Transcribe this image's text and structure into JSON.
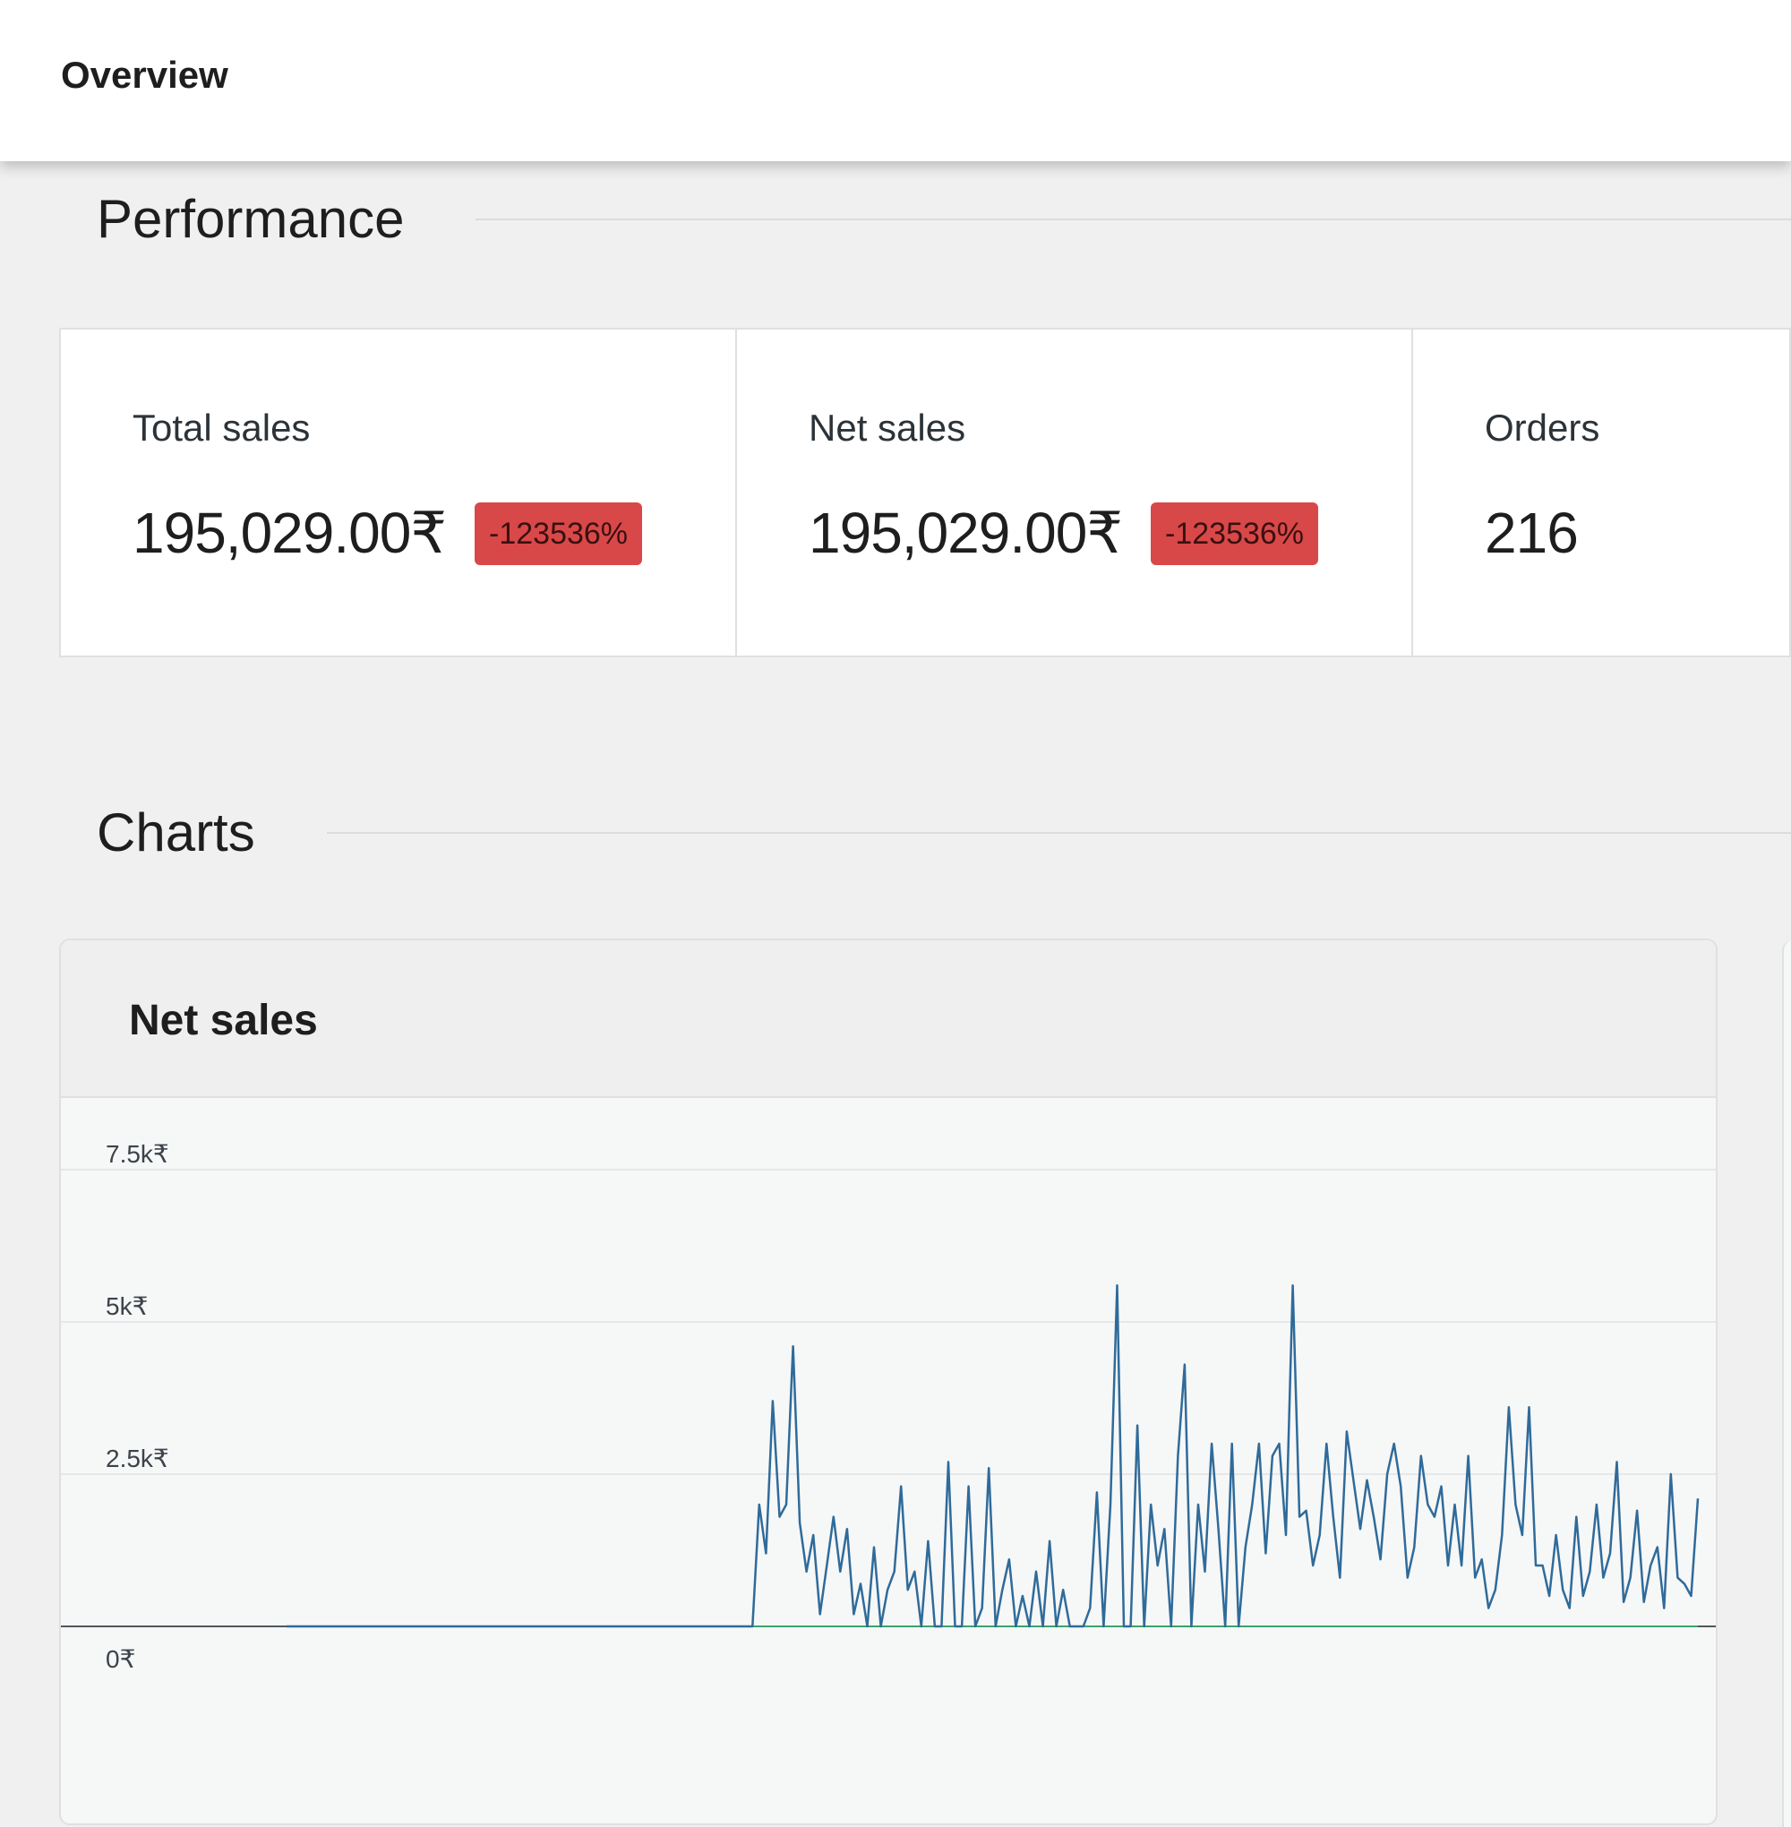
{
  "header": {
    "title": "Overview"
  },
  "sections": {
    "performance": "Performance",
    "charts": "Charts"
  },
  "cards": [
    {
      "label": "Total sales",
      "value": "195,029.00₹",
      "delta": "-123536%"
    },
    {
      "label": "Net sales",
      "value": "195,029.00₹",
      "delta": "-123536%"
    },
    {
      "label": "Orders",
      "value": "216"
    }
  ],
  "colors": {
    "negative_badge": "#d94848",
    "series_line": "#2f6b9a",
    "baseline": "#3aa36b"
  },
  "chart_data": {
    "type": "line",
    "title": "Net sales",
    "xlabel": "",
    "ylabel": "",
    "ylim": [
      -1000,
      7500
    ],
    "y_ticks": [
      "7.5k₹",
      "5k₹",
      "2.5k₹",
      "0₹"
    ],
    "grid": true,
    "legend": "none",
    "series": [
      {
        "values": [
          0,
          0,
          0,
          0,
          0,
          0,
          0,
          0,
          0,
          0,
          0,
          0,
          0,
          0,
          0,
          0,
          0,
          0,
          0,
          0,
          0,
          0,
          0,
          0,
          0,
          0,
          0,
          0,
          0,
          0,
          0,
          0,
          0,
          0,
          0,
          0,
          0,
          0,
          0,
          0,
          0,
          0,
          0,
          0,
          0,
          0,
          0,
          0,
          0,
          0,
          0,
          0,
          0,
          0,
          0,
          0,
          0,
          0,
          0,
          0,
          0,
          0,
          0,
          0,
          0,
          0,
          0,
          0,
          0,
          0,
          2000,
          1200,
          3700,
          1800,
          2000,
          4600,
          1700,
          900,
          1500,
          200,
          1000,
          1800,
          900,
          1600,
          200,
          700,
          0,
          1300,
          0,
          600,
          900,
          2300,
          600,
          900,
          0,
          1400,
          0,
          0,
          2700,
          0,
          0,
          2300,
          0,
          300,
          2600,
          0,
          600,
          1100,
          0,
          500,
          0,
          900,
          0,
          1400,
          0,
          600,
          0,
          0,
          0,
          300,
          2200,
          0,
          2000,
          5600,
          0,
          0,
          3300,
          0,
          2000,
          1000,
          1600,
          0,
          2800,
          4300,
          0,
          2000,
          900,
          3000,
          1600,
          0,
          3000,
          0,
          1300,
          2000,
          3000,
          1200,
          2800,
          3000,
          1500,
          5600,
          1800,
          1900,
          1000,
          1500,
          3000,
          1800,
          800,
          3200,
          2400,
          1600,
          2400,
          1800,
          1100,
          2500,
          3000,
          2300,
          800,
          1300,
          2800,
          2000,
          1800,
          2300,
          1000,
          2000,
          1000,
          2800,
          800,
          1100,
          300,
          600,
          1500,
          3600,
          2000,
          1500,
          3600,
          1000,
          1000,
          500,
          1500,
          600,
          300,
          1800,
          500,
          900,
          2000,
          800,
          1200,
          2700,
          400,
          800,
          1900,
          400,
          1000,
          1300,
          300,
          2500,
          800,
          700,
          500,
          2100
        ]
      }
    ]
  }
}
